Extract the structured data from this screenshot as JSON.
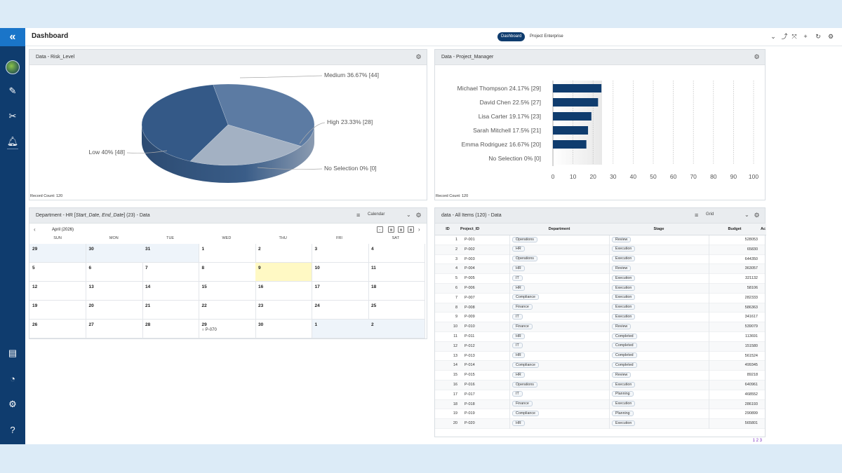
{
  "app": {
    "title": "Dashboard",
    "logo_icon": "app-logo-icon"
  },
  "topbar": {
    "tabs": [
      "Dashboard",
      "Project Enterprise"
    ],
    "active_tab": "Dashboard"
  },
  "risk_panel": {
    "title": "Data - Risk_Level",
    "record_count": "Record Count: 120"
  },
  "manager_panel": {
    "title": "Data - Project_Manager",
    "record_count": "Record Count: 120"
  },
  "calendar_panel": {
    "title_prefix": "Department - HR [",
    "title_italic": "Start_Date, End_Date",
    "title_suffix": "] (23) - Data",
    "view": "Calendar",
    "month": "April (2026)",
    "days": [
      "SUN",
      "MON",
      "TUE",
      "WED",
      "THU",
      "FRI",
      "SAT"
    ],
    "weeks": [
      [
        "29",
        "30",
        "31",
        "1",
        "2",
        "3",
        "4"
      ],
      [
        "5",
        "6",
        "7",
        "8",
        "9",
        "10",
        "11"
      ],
      [
        "12",
        "13",
        "14",
        "15",
        "16",
        "17",
        "18"
      ],
      [
        "19",
        "20",
        "21",
        "22",
        "23",
        "24",
        "25"
      ],
      [
        "26",
        "27",
        "28",
        "29",
        "30",
        "1",
        "2"
      ]
    ],
    "event": "P-070"
  },
  "grid_panel": {
    "title": "data - All Items (120) - Data",
    "view": "Grid",
    "columns": [
      "ID",
      "Project_ID",
      "Department",
      "Stage",
      "Budget",
      "Ac"
    ],
    "rows": [
      [
        "1",
        "P-001",
        "Operations",
        "Review",
        "528053"
      ],
      [
        "2",
        "P-002",
        "HR",
        "Execution",
        "65830"
      ],
      [
        "3",
        "P-003",
        "Operations",
        "Execution",
        "644350"
      ],
      [
        "4",
        "P-004",
        "HR",
        "Review",
        "363057"
      ],
      [
        "5",
        "P-005",
        "IT",
        "Execution",
        "321132"
      ],
      [
        "6",
        "P-006",
        "HR",
        "Execution",
        "58106"
      ],
      [
        "7",
        "P-007",
        "Compliance",
        "Execution",
        "282333"
      ],
      [
        "8",
        "P-008",
        "Finance",
        "Execution",
        "586363"
      ],
      [
        "9",
        "P-009",
        "IT",
        "Execution",
        "341617"
      ],
      [
        "10",
        "P-010",
        "Finance",
        "Review",
        "539079"
      ],
      [
        "11",
        "P-011",
        "HR",
        "Completed",
        "113691"
      ],
      [
        "12",
        "P-012",
        "IT",
        "Completed",
        "151580"
      ],
      [
        "13",
        "P-013",
        "HR",
        "Completed",
        "561524"
      ],
      [
        "14",
        "P-014",
        "Compliance",
        "Completed",
        "499345"
      ],
      [
        "15",
        "P-015",
        "HR",
        "Review",
        "89218"
      ],
      [
        "16",
        "P-016",
        "Operations",
        "Execution",
        "640961"
      ],
      [
        "17",
        "P-017",
        "IT",
        "Planning",
        "468552"
      ],
      [
        "18",
        "P-018",
        "Finance",
        "Execution",
        "286193"
      ],
      [
        "19",
        "P-019",
        "Compliance",
        "Planning",
        "290899"
      ],
      [
        "20",
        "P-020",
        "HR",
        "Execution",
        "565801"
      ]
    ],
    "pager": "1 2 3"
  },
  "chart_data": [
    {
      "type": "pie",
      "title": "Data - Risk_Level",
      "labels": [
        "Medium",
        "High",
        "No Selection",
        "Low"
      ],
      "values": [
        44,
        28,
        0,
        48
      ],
      "percent_labels": [
        "Medium 36.67% [44]",
        "High 23.33% [28]",
        "No Selection 0% [0]",
        "Low 40% [48]"
      ],
      "colors": [
        "#5c7ba3",
        "#a3b1c3",
        "#ccd3dc",
        "#345987"
      ]
    },
    {
      "type": "bar",
      "orientation": "horizontal",
      "title": "Data - Project_Manager",
      "categories": [
        "Michael Thompson 24.17% [29]",
        "David Chen 22.5% [27]",
        "Lisa Carter 19.17% [23]",
        "Sarah Mitchell 17.5% [21]",
        "Emma Rodriguez 16.67% [20]",
        "No Selection 0% [0]"
      ],
      "values": [
        24.17,
        22.5,
        19.17,
        17.5,
        16.67,
        0
      ],
      "xlim": [
        0,
        100
      ],
      "xticks": [
        "0",
        "10",
        "20",
        "30",
        "40",
        "50",
        "60",
        "70",
        "80",
        "90",
        "100"
      ],
      "color": "#0f3c6e"
    }
  ]
}
